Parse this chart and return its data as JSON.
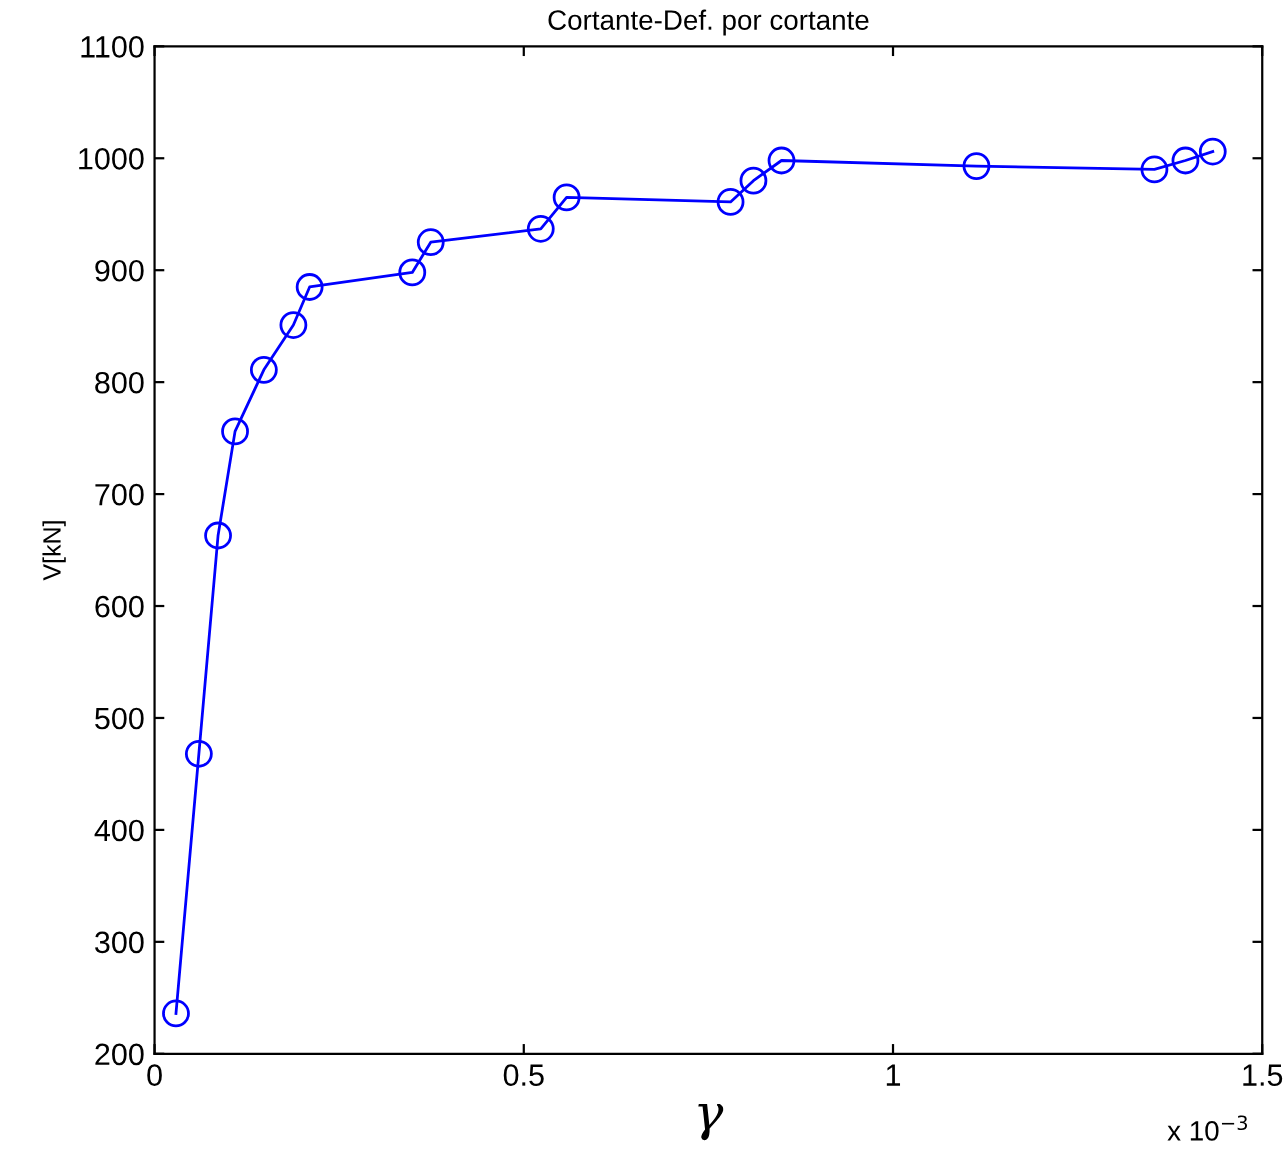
{
  "chart_data": {
    "type": "line",
    "title": "Cortante-Def. por cortante",
    "xlabel": "γ",
    "ylabel": "V[kN]",
    "annotations": [
      "x 10$^{−3}$"
    ],
    "x": [
      0.029,
      0.06,
      0.086,
      0.109,
      0.148,
      0.188,
      0.21,
      0.349,
      0.374,
      0.523,
      0.558,
      0.78,
      0.811,
      0.849,
      1.113,
      1.354,
      1.396,
      1.433
    ],
    "series": [
      {
        "color": "#0000ff",
        "values": [
          236,
          468,
          663,
          756,
          811,
          851,
          885,
          898,
          925,
          937,
          965,
          961,
          980,
          998,
          993,
          990,
          998,
          1006
        ]
      }
    ],
    "xlim": [
      0,
      1.5
    ],
    "xticks": [
      0,
      0.5,
      1,
      1.5
    ],
    "ylim": [
      200,
      1100
    ],
    "yticks": [
      200,
      300,
      400,
      500,
      600,
      700,
      800,
      900,
      1000,
      1100
    ],
    "marker": "circle",
    "line_style": "solid",
    "grid": false,
    "legend": false
  }
}
